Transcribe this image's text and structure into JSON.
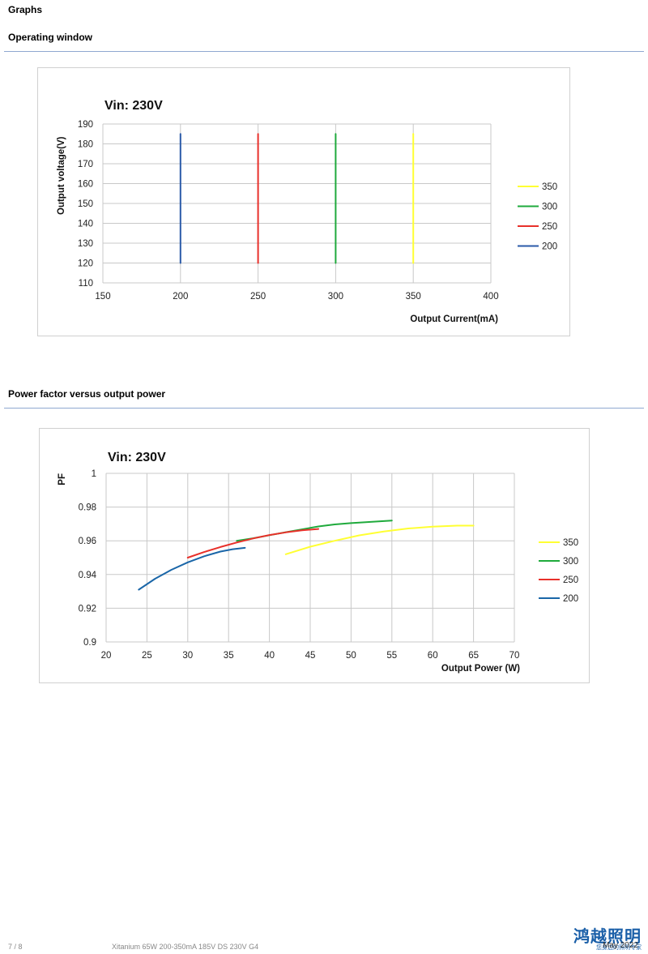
{
  "page": {
    "heading": "Graphs",
    "section1_title": "Operating window",
    "section2_title": "Power factor versus output power"
  },
  "chart_data": [
    {
      "type": "line",
      "title": "Vin: 230V",
      "xlabel": "Output Current(mA)",
      "ylabel": "Output voltage(V)",
      "xlim": [
        150,
        400
      ],
      "ylim": [
        110,
        190
      ],
      "xticks": [
        150,
        200,
        250,
        300,
        350,
        400
      ],
      "yticks": [
        110,
        120,
        130,
        140,
        150,
        160,
        170,
        180,
        190
      ],
      "grid": true,
      "legend_position": "right",
      "series": [
        {
          "name": "350",
          "color": "#ffff33",
          "x": [
            350,
            350
          ],
          "y": [
            120,
            185
          ]
        },
        {
          "name": "300",
          "color": "#1faa3c",
          "x": [
            300,
            300
          ],
          "y": [
            120,
            185
          ]
        },
        {
          "name": "250",
          "color": "#e8302a",
          "x": [
            250,
            250
          ],
          "y": [
            120,
            185
          ]
        },
        {
          "name": "200",
          "color": "#2a5aa8",
          "x": [
            200,
            200
          ],
          "y": [
            120,
            185
          ]
        }
      ]
    },
    {
      "type": "line",
      "title": "Vin: 230V",
      "xlabel": "Output Power (W)",
      "ylabel": "PF",
      "xlim": [
        20,
        70
      ],
      "ylim": [
        0.9,
        1
      ],
      "xticks": [
        20,
        25,
        30,
        35,
        40,
        45,
        50,
        55,
        60,
        65,
        70
      ],
      "yticks": [
        0.9,
        0.92,
        0.94,
        0.96,
        0.98,
        1
      ],
      "grid": true,
      "legend_position": "right",
      "series": [
        {
          "name": "350",
          "color": "#ffff33",
          "x": [
            42,
            45,
            48,
            51,
            54,
            57,
            60,
            63,
            65
          ],
          "y": [
            0.952,
            0.9565,
            0.96,
            0.9632,
            0.9655,
            0.9673,
            0.9684,
            0.969,
            0.969
          ]
        },
        {
          "name": "300",
          "color": "#1faa3c",
          "x": [
            36,
            38,
            40,
            42,
            44,
            46,
            48,
            50,
            52,
            55
          ],
          "y": [
            0.96,
            0.9615,
            0.9633,
            0.9651,
            0.9668,
            0.9685,
            0.9697,
            0.9705,
            0.9711,
            0.972
          ]
        },
        {
          "name": "250",
          "color": "#e8302a",
          "x": [
            30,
            32,
            34,
            36,
            38,
            40,
            42,
            44,
            46
          ],
          "y": [
            0.95,
            0.9533,
            0.9563,
            0.959,
            0.9614,
            0.9634,
            0.965,
            0.9662,
            0.967
          ]
        },
        {
          "name": "200",
          "color": "#1a66a8",
          "x": [
            24,
            26,
            28,
            30,
            32,
            34,
            35.5,
            37
          ],
          "y": [
            0.931,
            0.9375,
            0.9428,
            0.9472,
            0.9508,
            0.9536,
            0.955,
            0.9558
          ]
        }
      ]
    }
  ],
  "footer": {
    "page_number": "7 / 8",
    "doc_title": "Xitanium 65W 200-350mA 185V DS 230V G4",
    "date": "May 2022",
    "logo_text": "鸿越照明",
    "logo_sub": "您身边的照明专家"
  }
}
